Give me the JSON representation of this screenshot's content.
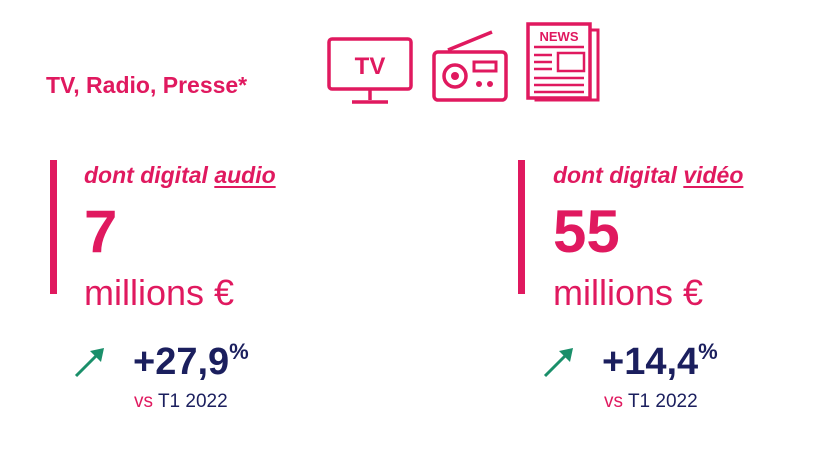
{
  "header": {
    "title": "TV, Radio, Presse*"
  },
  "icons": [
    "tv-icon",
    "radio-icon",
    "newspaper-icon"
  ],
  "tv_icon": {
    "label": "TV"
  },
  "newspaper_icon": {
    "label": "NEWS"
  },
  "left": {
    "subtitle_prefix": "dont digital ",
    "subtitle_keyword": "audio",
    "value": "7",
    "unit": "millions €",
    "change_value": "+27,9",
    "change_sign": "%",
    "vs_prefix": "vs ",
    "vs_period": "T1 2022"
  },
  "right": {
    "subtitle_prefix": "dont digital ",
    "subtitle_keyword": "vidéo",
    "value": "55",
    "unit": "millions €",
    "change_value": "+14,4",
    "change_sign": "%",
    "vs_prefix": "vs ",
    "vs_period": "T1 2022"
  },
  "colors": {
    "accent": "#e0195f",
    "navy": "#1b1f5e",
    "up": "#1a8f6a"
  }
}
